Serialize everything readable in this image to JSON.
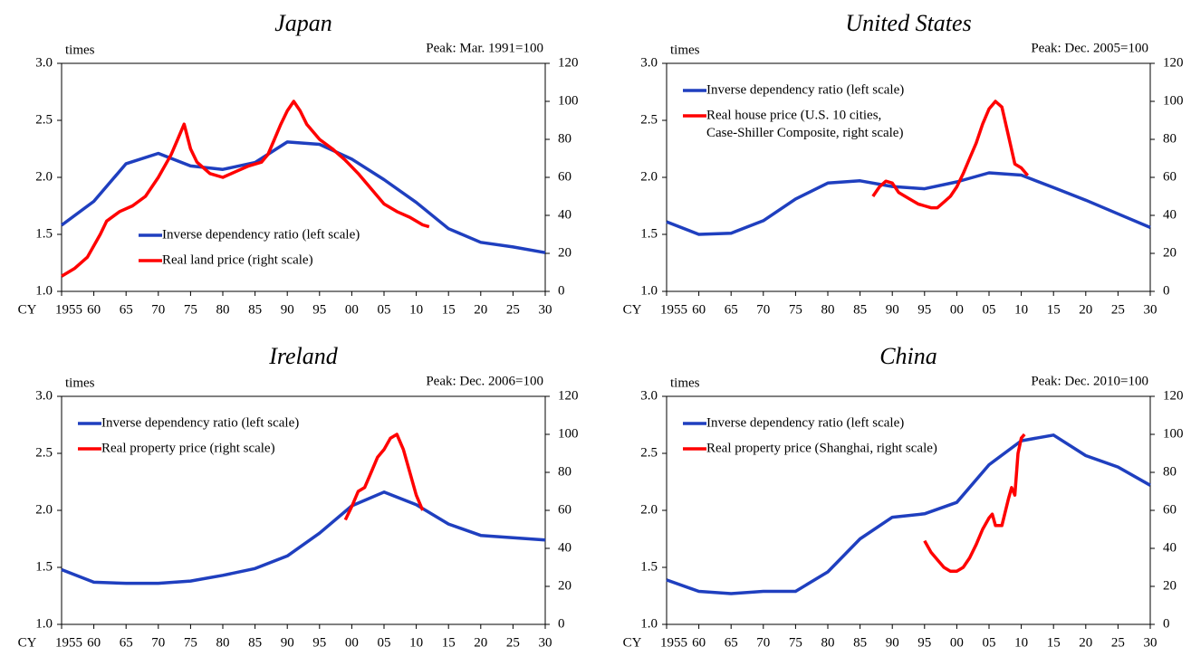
{
  "chart_data": [
    {
      "type": "line",
      "title": "Japan",
      "ylabel": "times",
      "annotation": "Peak: Mar. 1991=100",
      "xlabel": "CY",
      "legend": "lower center",
      "xlim": [
        1955,
        2030
      ],
      "xticks": [
        {
          "value": 1955,
          "label": "1955"
        },
        {
          "value": 1960,
          "label": "60"
        },
        {
          "value": 1965,
          "label": "65"
        },
        {
          "value": 1970,
          "label": "70"
        },
        {
          "value": 1975,
          "label": "75"
        },
        {
          "value": 1980,
          "label": "80"
        },
        {
          "value": 1985,
          "label": "85"
        },
        {
          "value": 1990,
          "label": "90"
        },
        {
          "value": 1995,
          "label": "95"
        },
        {
          "value": 2000,
          "label": "00"
        },
        {
          "value": 2005,
          "label": "05"
        },
        {
          "value": 2010,
          "label": "10"
        },
        {
          "value": 2015,
          "label": "15"
        },
        {
          "value": 2020,
          "label": "20"
        },
        {
          "value": 2025,
          "label": "25"
        },
        {
          "value": 2030,
          "label": "30"
        }
      ],
      "ylim": [
        1,
        3
      ],
      "yticks": [
        {
          "value": 1,
          "label": "1.0"
        },
        1.5,
        {
          "value": 2,
          "label": "2.0"
        },
        2.5,
        {
          "value": 3,
          "label": "3.0"
        }
      ],
      "y2lim": [
        0,
        120
      ],
      "y2ticks": [
        0,
        20,
        40,
        60,
        80,
        100,
        120
      ],
      "series": [
        {
          "name": "Inverse dependency ratio (left scale)",
          "color": "#1f3fbf",
          "x": [
            1955,
            1960,
            1965,
            1970,
            1975,
            1980,
            1985,
            1990,
            1995,
            2000,
            2005,
            2010,
            2015,
            2020,
            2025,
            2030
          ],
          "values": [
            1.58,
            1.79,
            2.12,
            2.21,
            2.1,
            2.07,
            2.13,
            2.31,
            2.29,
            2.16,
            1.98,
            1.78,
            1.55,
            1.43,
            1.39,
            1.34
          ]
        },
        {
          "name": "Real land price (right scale)",
          "color": "#ff0000",
          "axis": "y2",
          "x": [
            1955,
            1957,
            1959,
            1961,
            1962,
            1964,
            1966,
            1968,
            1970,
            1972,
            1973,
            1974,
            1975,
            1976,
            1978,
            1980,
            1982,
            1984,
            1986,
            1987,
            1988,
            1989,
            1990,
            1991,
            1992,
            1993,
            1995,
            1997,
            1999,
            2001,
            2003,
            2005,
            2007,
            2009,
            2011,
            2012
          ],
          "values": [
            8,
            12,
            18,
            30,
            37,
            42,
            45,
            50,
            60,
            72,
            80,
            88,
            75,
            68,
            62,
            60,
            63,
            66,
            68,
            72,
            80,
            88,
            95,
            100,
            95,
            88,
            80,
            75,
            69,
            62,
            54,
            46,
            42,
            39,
            35,
            34
          ]
        }
      ]
    },
    {
      "type": "line",
      "title": "United States",
      "ylabel": "times",
      "annotation": "Peak: Dec. 2005=100",
      "xlabel": "CY",
      "legend": "upper left",
      "xlim": [
        1955,
        2030
      ],
      "xticks": [
        {
          "value": 1955,
          "label": "1955"
        },
        {
          "value": 1960,
          "label": "60"
        },
        {
          "value": 1965,
          "label": "65"
        },
        {
          "value": 1970,
          "label": "70"
        },
        {
          "value": 1975,
          "label": "75"
        },
        {
          "value": 1980,
          "label": "80"
        },
        {
          "value": 1985,
          "label": "85"
        },
        {
          "value": 1990,
          "label": "90"
        },
        {
          "value": 1995,
          "label": "95"
        },
        {
          "value": 2000,
          "label": "00"
        },
        {
          "value": 2005,
          "label": "05"
        },
        {
          "value": 2010,
          "label": "10"
        },
        {
          "value": 2015,
          "label": "15"
        },
        {
          "value": 2020,
          "label": "20"
        },
        {
          "value": 2025,
          "label": "25"
        },
        {
          "value": 2030,
          "label": "30"
        }
      ],
      "ylim": [
        1,
        3
      ],
      "yticks": [
        {
          "value": 1,
          "label": "1.0"
        },
        1.5,
        {
          "value": 2,
          "label": "2.0"
        },
        2.5,
        {
          "value": 3,
          "label": "3.0"
        }
      ],
      "y2lim": [
        0,
        120
      ],
      "y2ticks": [
        0,
        20,
        40,
        60,
        80,
        100,
        120
      ],
      "series": [
        {
          "name": "Inverse dependency ratio (left scale)",
          "color": "#1f3fbf",
          "x": [
            1955,
            1960,
            1965,
            1970,
            1975,
            1980,
            1985,
            1990,
            1995,
            2000,
            2005,
            2010,
            2015,
            2020,
            2025,
            2030
          ],
          "values": [
            1.61,
            1.5,
            1.51,
            1.62,
            1.81,
            1.95,
            1.97,
            1.92,
            1.9,
            1.96,
            2.04,
            2.02,
            1.91,
            1.8,
            1.68,
            1.56
          ]
        },
        {
          "name": "Real house price (U.S. 10 cities,\nCase-Shiller Composite, right scale)",
          "color": "#ff0000",
          "axis": "y2",
          "x": [
            1987,
            1988,
            1989,
            1990,
            1991,
            1992,
            1993,
            1994,
            1995,
            1996,
            1997,
            1998,
            1999,
            2000,
            2001,
            2002,
            2003,
            2004,
            2005,
            2006,
            2007,
            2008,
            2009,
            2010,
            2011
          ],
          "values": [
            50,
            55,
            58,
            57,
            52,
            50,
            48,
            46,
            45,
            44,
            44,
            47,
            50,
            55,
            62,
            70,
            78,
            88,
            96,
            100,
            97,
            82,
            67,
            65,
            61
          ]
        }
      ]
    },
    {
      "type": "line",
      "title": "Ireland",
      "ylabel": "times",
      "annotation": "Peak: Dec. 2006=100",
      "xlabel": "CY",
      "legend": "upper left",
      "xlim": [
        1955,
        2030
      ],
      "xticks": [
        {
          "value": 1955,
          "label": "1955"
        },
        {
          "value": 1960,
          "label": "60"
        },
        {
          "value": 1965,
          "label": "65"
        },
        {
          "value": 1970,
          "label": "70"
        },
        {
          "value": 1975,
          "label": "75"
        },
        {
          "value": 1980,
          "label": "80"
        },
        {
          "value": 1985,
          "label": "85"
        },
        {
          "value": 1990,
          "label": "90"
        },
        {
          "value": 1995,
          "label": "95"
        },
        {
          "value": 2000,
          "label": "00"
        },
        {
          "value": 2005,
          "label": "05"
        },
        {
          "value": 2010,
          "label": "10"
        },
        {
          "value": 2015,
          "label": "15"
        },
        {
          "value": 2020,
          "label": "20"
        },
        {
          "value": 2025,
          "label": "25"
        },
        {
          "value": 2030,
          "label": "30"
        }
      ],
      "ylim": [
        1,
        3
      ],
      "yticks": [
        {
          "value": 1,
          "label": "1.0"
        },
        1.5,
        {
          "value": 2,
          "label": "2.0"
        },
        2.5,
        {
          "value": 3,
          "label": "3.0"
        }
      ],
      "y2lim": [
        0,
        120
      ],
      "y2ticks": [
        0,
        20,
        40,
        60,
        80,
        100,
        120
      ],
      "series": [
        {
          "name": "Inverse dependency ratio (left scale)",
          "color": "#1f3fbf",
          "x": [
            1955,
            1960,
            1965,
            1970,
            1975,
            1980,
            1985,
            1990,
            1995,
            2000,
            2005,
            2010,
            2015,
            2020,
            2025,
            2030
          ],
          "values": [
            1.48,
            1.37,
            1.36,
            1.36,
            1.38,
            1.43,
            1.49,
            1.6,
            1.8,
            2.04,
            2.16,
            2.05,
            1.88,
            1.78,
            1.76,
            1.74
          ]
        },
        {
          "name": "Real property price (right scale)",
          "color": "#ff0000",
          "axis": "y2",
          "x": [
            1999,
            2000,
            2001,
            2002,
            2003,
            2004,
            2005,
            2006,
            2007,
            2008,
            2009,
            2010,
            2011
          ],
          "values": [
            55,
            62,
            70,
            72,
            80,
            88,
            92,
            98,
            100,
            92,
            80,
            68,
            60
          ]
        }
      ]
    },
    {
      "type": "line",
      "title": "China",
      "ylabel": "times",
      "annotation": "Peak: Dec. 2010=100",
      "xlabel": "CY",
      "legend": "upper left",
      "xlim": [
        1955,
        2030
      ],
      "xticks": [
        {
          "value": 1955,
          "label": "1955"
        },
        {
          "value": 1960,
          "label": "60"
        },
        {
          "value": 1965,
          "label": "65"
        },
        {
          "value": 1970,
          "label": "70"
        },
        {
          "value": 1975,
          "label": "75"
        },
        {
          "value": 1980,
          "label": "80"
        },
        {
          "value": 1985,
          "label": "85"
        },
        {
          "value": 1990,
          "label": "90"
        },
        {
          "value": 1995,
          "label": "95"
        },
        {
          "value": 2000,
          "label": "00"
        },
        {
          "value": 2005,
          "label": "05"
        },
        {
          "value": 2010,
          "label": "10"
        },
        {
          "value": 2015,
          "label": "15"
        },
        {
          "value": 2020,
          "label": "20"
        },
        {
          "value": 2025,
          "label": "25"
        },
        {
          "value": 2030,
          "label": "30"
        }
      ],
      "ylim": [
        1,
        3
      ],
      "yticks": [
        {
          "value": 1,
          "label": "1.0"
        },
        1.5,
        {
          "value": 2,
          "label": "2.0"
        },
        2.5,
        {
          "value": 3,
          "label": "3.0"
        }
      ],
      "y2lim": [
        0,
        120
      ],
      "y2ticks": [
        0,
        20,
        40,
        60,
        80,
        100,
        120
      ],
      "series": [
        {
          "name": "Inverse dependency ratio (left scale)",
          "color": "#1f3fbf",
          "x": [
            1955,
            1960,
            1965,
            1970,
            1975,
            1980,
            1985,
            1990,
            1995,
            2000,
            2005,
            2010,
            2015,
            2020,
            2025,
            2030
          ],
          "values": [
            1.39,
            1.29,
            1.27,
            1.29,
            1.29,
            1.46,
            1.75,
            1.94,
            1.97,
            2.07,
            2.4,
            2.61,
            2.66,
            2.48,
            2.38,
            2.22
          ]
        },
        {
          "name": "Real property price (Shanghai, right scale)",
          "color": "#ff0000",
          "axis": "y2",
          "x": [
            1995,
            1996,
            1997,
            1998,
            1999,
            2000,
            2001,
            2002,
            2003,
            2004,
            2005,
            2005.5,
            2006,
            2007,
            2008,
            2008.5,
            2009,
            2009.5,
            2010,
            2010.5
          ],
          "values": [
            44,
            38,
            34,
            30,
            28,
            28,
            30,
            35,
            42,
            50,
            56,
            58,
            52,
            52,
            66,
            72,
            68,
            90,
            98,
            100
          ]
        }
      ]
    }
  ]
}
